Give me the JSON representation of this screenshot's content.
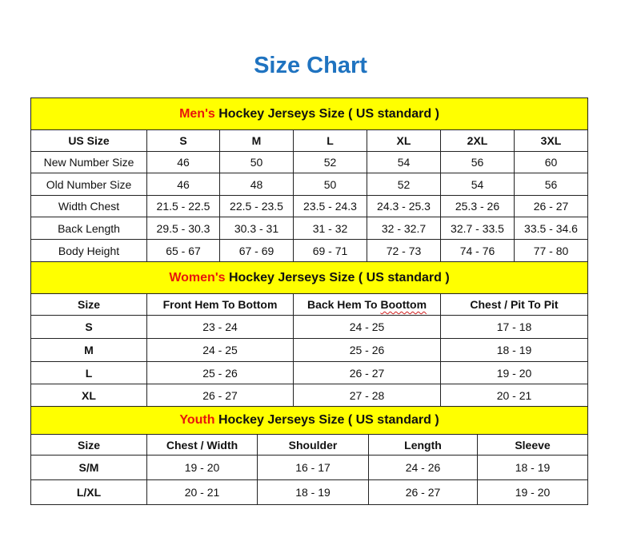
{
  "title": "Size Chart",
  "colors": {
    "title": "#1f73c0",
    "band": "#ffff00",
    "accent": "#e8160c"
  },
  "men": {
    "band_prefix": "Men's",
    "band_rest": " Hockey Jerseys Size ( US standard )",
    "headers": [
      "US Size",
      "S",
      "M",
      "L",
      "XL",
      "2XL",
      "3XL"
    ],
    "rows": [
      [
        "New Number Size",
        "46",
        "50",
        "52",
        "54",
        "56",
        "60"
      ],
      [
        "Old Number Size",
        "46",
        "48",
        "50",
        "52",
        "54",
        "56"
      ],
      [
        "Width Chest",
        "21.5 - 22.5",
        "22.5 - 23.5",
        "23.5 - 24.3",
        "24.3 - 25.3",
        "25.3 - 26",
        "26 - 27"
      ],
      [
        "Back Length",
        "29.5 - 30.3",
        "30.3 - 31",
        "31 - 32",
        "32 - 32.7",
        "32.7 - 33.5",
        "33.5 - 34.6"
      ],
      [
        "Body Height",
        "65 - 67",
        "67 - 69",
        "69 - 71",
        "72 - 73",
        "74 - 76",
        "77 - 80"
      ]
    ]
  },
  "women": {
    "band_prefix": "Women's",
    "band_rest": " Hockey Jerseys Size ( US standard )",
    "headers": [
      "Size",
      "Front Hem To Bottom",
      "Back Hem To Boottom",
      "Chest / Pit To Pit"
    ],
    "rows": [
      [
        "S",
        "23 - 24",
        "24 - 25",
        "17 - 18"
      ],
      [
        "M",
        "24 - 25",
        "25 - 26",
        "18 - 19"
      ],
      [
        "L",
        "25 - 26",
        "26 - 27",
        "19 - 20"
      ],
      [
        "XL",
        "26 - 27",
        "27 - 28",
        "20 - 21"
      ]
    ]
  },
  "youth": {
    "band_prefix": "Youth",
    "band_rest": " Hockey Jerseys Size ( US standard )",
    "headers": [
      "Size",
      "Chest / Width",
      "Shoulder",
      "Length",
      "Sleeve"
    ],
    "rows": [
      [
        "S/M",
        "19 - 20",
        "16 - 17",
        "24 - 26",
        "18 - 19"
      ],
      [
        "L/XL",
        "20 - 21",
        "18 - 19",
        "26 - 27",
        "19 - 20"
      ]
    ]
  }
}
